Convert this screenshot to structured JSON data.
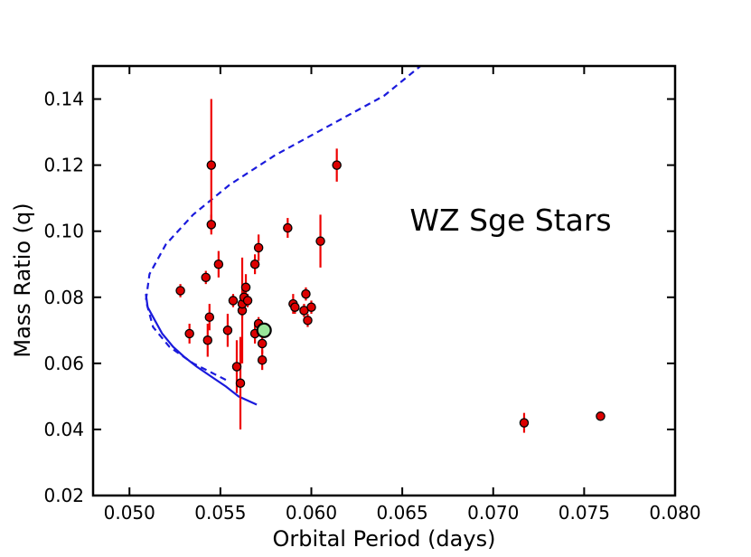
{
  "chart_data": {
    "type": "scatter",
    "xlabel": "Orbital Period (days)",
    "ylabel": "Mass Ratio (q)",
    "annotation": "WZ Sge Stars",
    "xlim": [
      0.048,
      0.08
    ],
    "ylim": [
      0.02,
      0.15
    ],
    "x_ticks": [
      0.05,
      0.055,
      0.06,
      0.065,
      0.07,
      0.075,
      0.08
    ],
    "x_tick_labels": [
      "0.050",
      "0.055",
      "0.060",
      "0.065",
      "0.070",
      "0.075",
      "0.080"
    ],
    "y_ticks": [
      0.02,
      0.04,
      0.06,
      0.08,
      0.1,
      0.12,
      0.14
    ],
    "y_tick_labels": [
      "0.02",
      "0.04",
      "0.06",
      "0.08",
      "0.10",
      "0.12",
      "0.14"
    ],
    "grid": false,
    "colors": {
      "points_fill": "#dd0000",
      "points_edge": "#000000",
      "error_bars": "#ee0000",
      "curves": "#1a1adc",
      "highlight_fill": "#99e699"
    },
    "points": [
      {
        "x": 0.0528,
        "y": 0.082,
        "err": 0.002
      },
      {
        "x": 0.0533,
        "y": 0.069,
        "err": 0.003
      },
      {
        "x": 0.0542,
        "y": 0.086,
        "err": 0.002
      },
      {
        "x": 0.0543,
        "y": 0.067,
        "err": 0.005
      },
      {
        "x": 0.0544,
        "y": 0.074,
        "err": 0.004
      },
      {
        "x": 0.0545,
        "y": 0.12,
        "err": 0.02
      },
      {
        "x": 0.0545,
        "y": 0.102,
        "err": 0.003
      },
      {
        "x": 0.0549,
        "y": 0.09,
        "err": 0.004
      },
      {
        "x": 0.0554,
        "y": 0.07,
        "err": 0.005
      },
      {
        "x": 0.0557,
        "y": 0.079,
        "err": 0.002
      },
      {
        "x": 0.0559,
        "y": 0.059,
        "err": 0.008
      },
      {
        "x": 0.0561,
        "y": 0.054,
        "err": 0.014
      },
      {
        "x": 0.0562,
        "y": 0.076,
        "err": 0.016
      },
      {
        "x": 0.0562,
        "y": 0.078,
        "err": 0.004
      },
      {
        "x": 0.0563,
        "y": 0.08,
        "err": 0.003
      },
      {
        "x": 0.0564,
        "y": 0.083,
        "err": 0.004
      },
      {
        "x": 0.0565,
        "y": 0.079,
        "err": 0.002
      },
      {
        "x": 0.0569,
        "y": 0.069,
        "err": 0.003
      },
      {
        "x": 0.0569,
        "y": 0.09,
        "err": 0.003
      },
      {
        "x": 0.0571,
        "y": 0.095,
        "err": 0.004
      },
      {
        "x": 0.0571,
        "y": 0.072,
        "err": 0.002
      },
      {
        "x": 0.0573,
        "y": 0.066,
        "err": 0.003
      },
      {
        "x": 0.0573,
        "y": 0.061,
        "err": 0.003
      },
      {
        "x": 0.0587,
        "y": 0.101,
        "err": 0.003
      },
      {
        "x": 0.059,
        "y": 0.078,
        "err": 0.003
      },
      {
        "x": 0.0591,
        "y": 0.077,
        "err": 0.002
      },
      {
        "x": 0.0596,
        "y": 0.076,
        "err": 0.002
      },
      {
        "x": 0.0597,
        "y": 0.081,
        "err": 0.002
      },
      {
        "x": 0.0598,
        "y": 0.073,
        "err": 0.002
      },
      {
        "x": 0.06,
        "y": 0.077,
        "err": 0.002
      },
      {
        "x": 0.0605,
        "y": 0.097,
        "err": 0.008
      },
      {
        "x": 0.0614,
        "y": 0.12,
        "err": 0.005
      },
      {
        "x": 0.0717,
        "y": 0.042,
        "err": 0.003
      },
      {
        "x": 0.0759,
        "y": 0.044,
        "err": 0.001
      }
    ],
    "highlight_point": {
      "x": 0.0574,
      "y": 0.07
    },
    "series": [
      {
        "style": "dashed",
        "x": [
          0.0553,
          0.0535,
          0.0522,
          0.0513,
          0.0509,
          0.0511,
          0.052,
          0.0535,
          0.0555,
          0.058,
          0.061,
          0.064,
          0.066
        ],
        "y": [
          0.055,
          0.06,
          0.065,
          0.071,
          0.079,
          0.087,
          0.096,
          0.105,
          0.114,
          0.123,
          0.132,
          0.141,
          0.15
        ]
      },
      {
        "style": "solid",
        "x": [
          0.057,
          0.056,
          0.0553,
          0.0545,
          0.0537,
          0.053,
          0.0524,
          0.0518,
          0.0514,
          0.051,
          0.0509
        ],
        "y": [
          0.0475,
          0.05,
          0.053,
          0.056,
          0.059,
          0.062,
          0.065,
          0.069,
          0.073,
          0.077,
          0.081
        ]
      }
    ]
  }
}
